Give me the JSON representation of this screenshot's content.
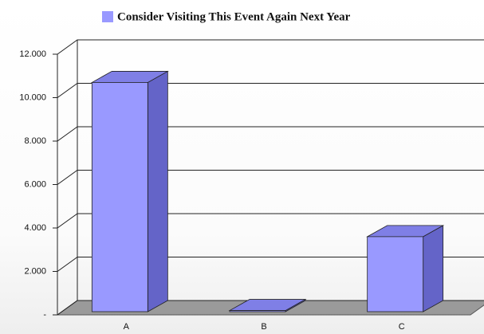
{
  "chart_data": {
    "type": "bar",
    "categories": [
      "A",
      "B",
      "C"
    ],
    "series": [
      {
        "name": "Consider Visiting This Event Again Next Year",
        "color": "#9999ff",
        "values": [
          10700,
          200,
          3600
        ]
      }
    ],
    "ylim": [
      0,
      12000
    ],
    "yticks": [
      {
        "value": 0,
        "label": "-"
      },
      {
        "value": 2000,
        "label": "2.000"
      },
      {
        "value": 4000,
        "label": "4.000"
      },
      {
        "value": 6000,
        "label": "6.000"
      },
      {
        "value": 8000,
        "label": "8.000"
      },
      {
        "value": 10000,
        "label": "10.000"
      },
      {
        "value": 12000,
        "label": "12.000"
      }
    ],
    "grid": true
  }
}
